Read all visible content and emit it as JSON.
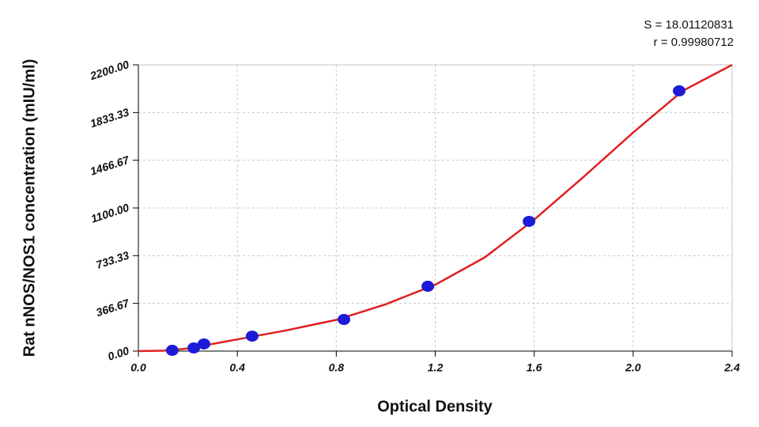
{
  "chart_data": {
    "type": "scatter",
    "xlabel": "Optical Density",
    "ylabel": "Rat nNOS/NOS1 concentration (mIU/ml)",
    "annotations": [
      "S = 18.01120831",
      "r = 0.99980712"
    ],
    "xlim": [
      0,
      2.4
    ],
    "ylim": [
      0,
      2200
    ],
    "xticks": [
      {
        "value": 0,
        "label": "0.0"
      },
      0.4,
      {
        "value": 0.8,
        "label": "0.8"
      },
      {
        "value": 1.2,
        "label": "1.2"
      },
      {
        "value": 1.6,
        "label": "1.6"
      },
      {
        "value": 2.0,
        "label": "2.0"
      },
      2.4
    ],
    "yticks": [
      {
        "value": 0,
        "label": "0.00"
      },
      {
        "value": 366.67,
        "label": "366.67"
      },
      {
        "value": 733.33,
        "label": "733.33"
      },
      {
        "value": 1100,
        "label": "1100.00"
      },
      {
        "value": 1466.67,
        "label": "1466.67"
      },
      {
        "value": 1833.33,
        "label": "1833.33"
      },
      {
        "value": 2200,
        "label": "2200.00"
      }
    ],
    "grid": true,
    "points": {
      "color": "#1c1cd6",
      "x": [
        0.137,
        0.224,
        0.265,
        0.46,
        0.831,
        1.17,
        1.579,
        2.186
      ],
      "values": [
        6,
        24,
        55,
        115,
        243,
        498,
        997,
        2000
      ]
    },
    "fit": {
      "color": "#e02020",
      "x": [
        0,
        0.1,
        0.2,
        0.4,
        0.6,
        0.8,
        1.0,
        1.2,
        1.4,
        1.6,
        1.8,
        2.0,
        2.2,
        2.4
      ],
      "values": [
        0,
        3,
        20,
        90,
        160,
        240,
        360,
        510,
        720,
        1010,
        1340,
        1680,
        2000,
        2200
      ]
    }
  }
}
